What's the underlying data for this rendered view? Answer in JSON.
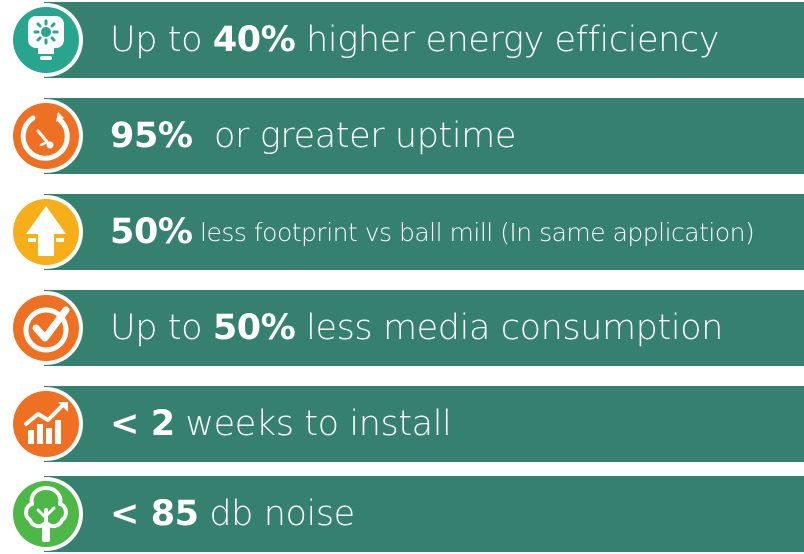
{
  "colors": {
    "bar": "#36806f",
    "icon_teal": "#29a48f",
    "icon_orange": "#ee7022",
    "icon_yellow": "#f7ae1b",
    "icon_green": "#4db848"
  },
  "items": [
    {
      "icon": "lightbulb-icon",
      "prefix": "Up to ",
      "bold": "40%",
      "suffix": " higher energy efficiency"
    },
    {
      "icon": "gauge-icon",
      "prefix": "",
      "bold": "95%",
      "suffix": "  or greater uptime"
    },
    {
      "icon": "footprint-arrow-icon",
      "prefix": "",
      "bold": "50%",
      "suffix": " less footprint vs ball mill (In same application)"
    },
    {
      "icon": "checkmark-circle-icon",
      "prefix": "Up to ",
      "bold": "50%",
      "suffix": " less media consumption"
    },
    {
      "icon": "growth-chart-icon",
      "prefix": "",
      "bold": "< 2",
      "suffix": " weeks to install"
    },
    {
      "icon": "tree-icon",
      "prefix": "",
      "bold": "< 85",
      "suffix": " db noise"
    }
  ]
}
